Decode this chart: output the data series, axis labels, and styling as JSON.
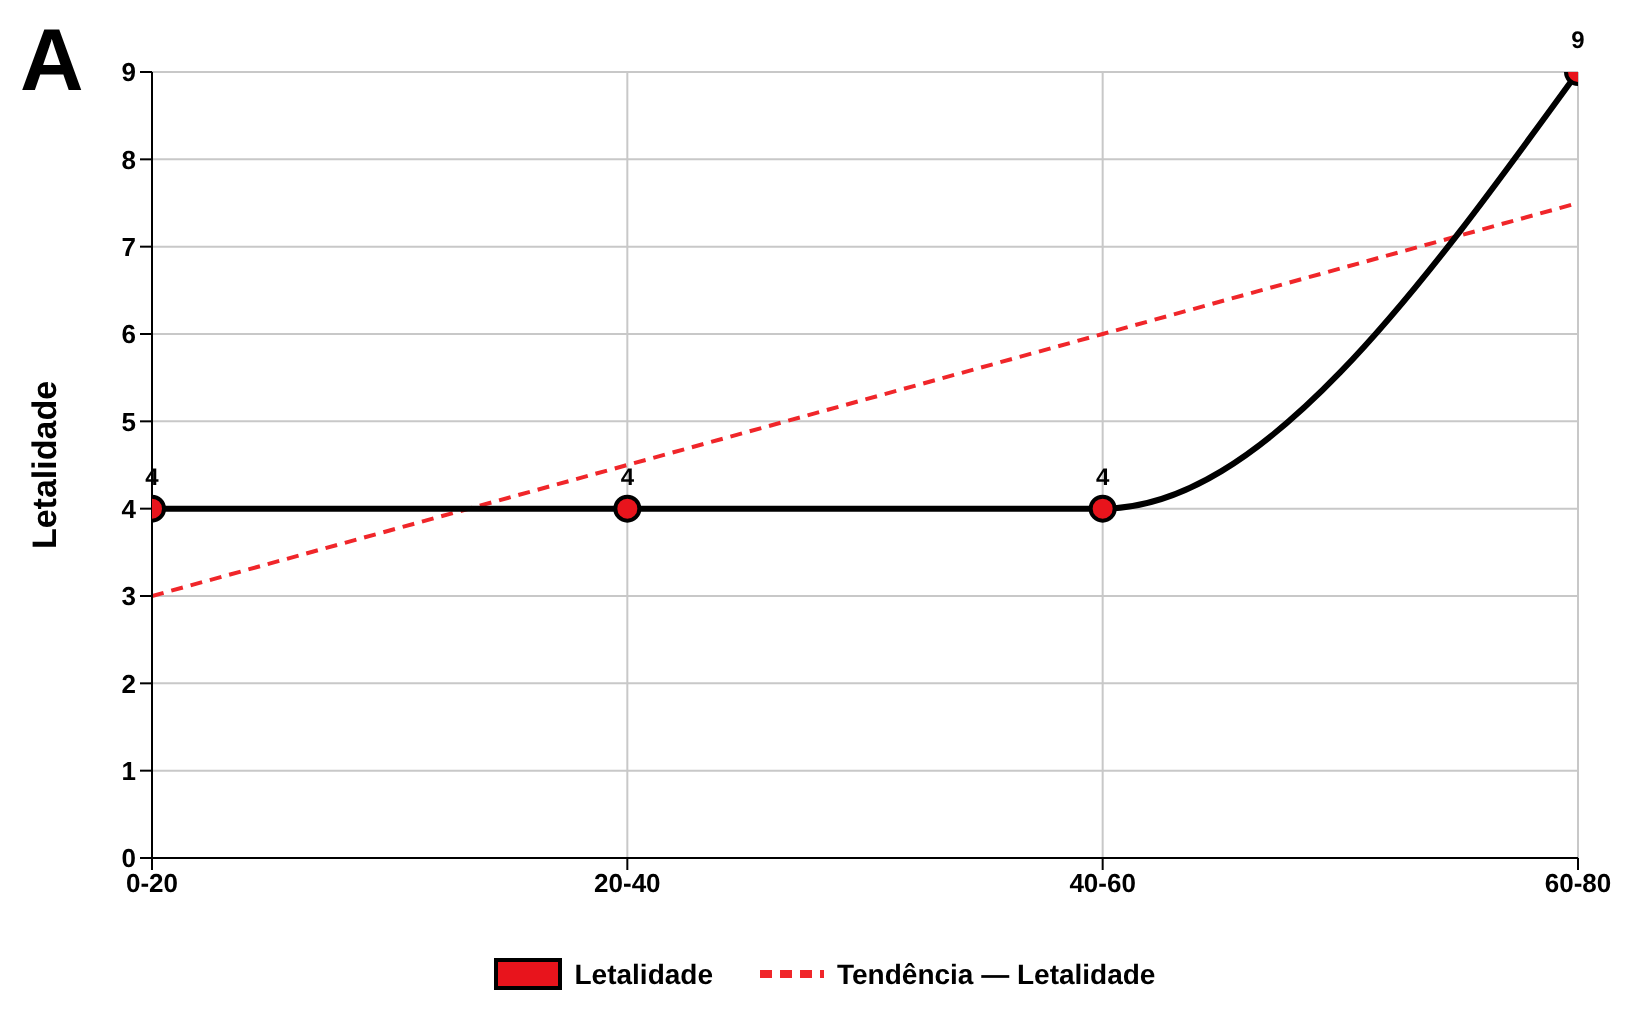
{
  "chart_data": {
    "type": "line",
    "title": "A",
    "ylabel": "Letalidade",
    "categories": [
      "0-20",
      "20-40",
      "40-60",
      "60-80"
    ],
    "series": [
      {
        "name": "Letalidade",
        "color": "#e8141c",
        "values": [
          4,
          4,
          4,
          9
        ],
        "value_labels": [
          "4",
          "4",
          "4",
          "9"
        ],
        "marker": "circle",
        "line_style": "solid"
      },
      {
        "name": "Tendência — Letalidade",
        "color": "#f0262a",
        "values": [
          3,
          4.5,
          6,
          7.5
        ],
        "marker": "none",
        "line_style": "dashed"
      }
    ],
    "ylim": [
      0,
      9
    ],
    "yticks": [
      0,
      1,
      2,
      3,
      4,
      5,
      6,
      7,
      8,
      9
    ],
    "grid": true,
    "legend": "bottom"
  }
}
